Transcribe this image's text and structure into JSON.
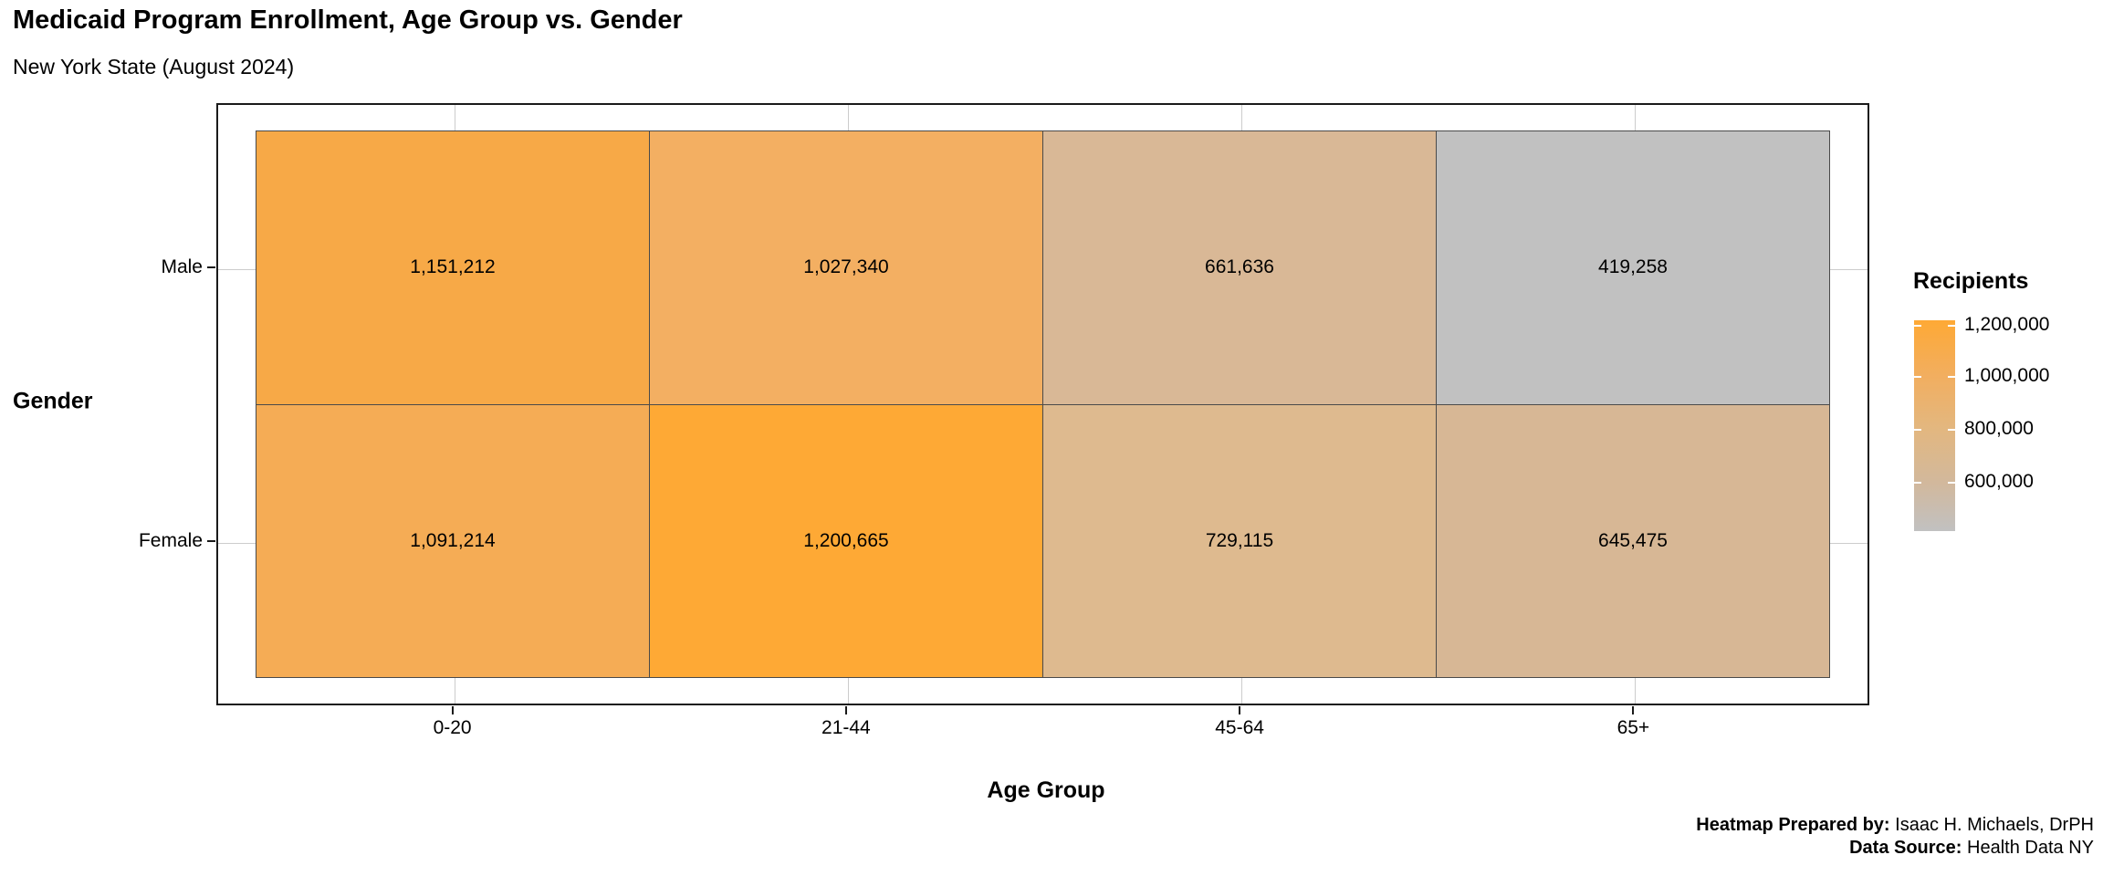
{
  "title": "Medicaid Program Enrollment, Age Group vs. Gender",
  "subtitle": "New York State (August 2024)",
  "chart_data": {
    "type": "heatmap",
    "title": "Medicaid Program Enrollment, Age Group vs. Gender",
    "subtitle": "New York State (August 2024)",
    "xlabel": "Age Group",
    "ylabel": "Gender",
    "x_categories": [
      "0-20",
      "21-44",
      "45-64",
      "65+"
    ],
    "y_categories": [
      "Male",
      "Female"
    ],
    "series": [
      {
        "name": "Male",
        "values": [
          1151212,
          1027340,
          661636,
          419258
        ]
      },
      {
        "name": "Female",
        "values": [
          1091214,
          1200665,
          729115,
          645475
        ]
      }
    ],
    "cell_labels": [
      [
        "1,151,212",
        "1,027,340",
        "661,636",
        "419,258"
      ],
      [
        "1,091,214",
        "1,200,665",
        "729,115",
        "645,475"
      ]
    ],
    "cell_colors": [
      [
        "#F7A947",
        "#F3AF62",
        "#D9B896",
        "#C1C1C1"
      ],
      [
        "#F5AC55",
        "#FEA935",
        "#DEBA8F",
        "#D7B795"
      ]
    ],
    "grid": true,
    "legend": {
      "title": "Recipients",
      "position": "right",
      "tick_labels": [
        "1,200,000",
        "1,000,000",
        "800,000",
        "600,000"
      ],
      "tick_values": [
        1200000,
        1000000,
        800000,
        600000
      ],
      "range": [
        419258,
        1200665
      ],
      "gradient_top_color": "#FEA935",
      "gradient_bottom_color": "#C1C1C1"
    }
  },
  "footer": {
    "prepared_by_label": "Heatmap Prepared by:",
    "prepared_by_value": "Isaac H. Michaels, DrPH",
    "source_label": "Data Source:",
    "source_value": "Health Data NY"
  }
}
